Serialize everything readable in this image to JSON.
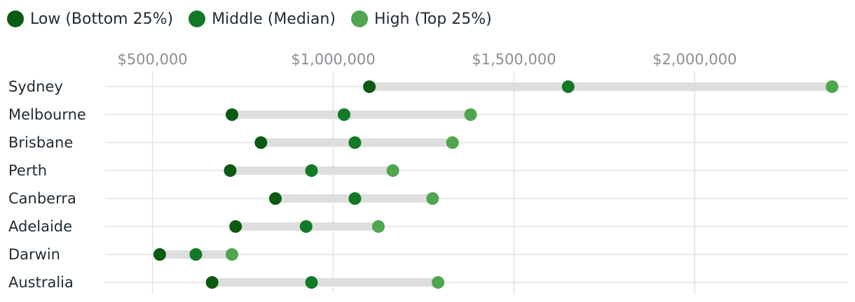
{
  "colors": {
    "low": "#0b5a12",
    "middle": "#127a27",
    "high": "#4ea64f",
    "range_bar": "#dedede",
    "grid": "#e2e2e2",
    "tick_text": "#8a8f94",
    "label_text": "#1f2a33"
  },
  "legend": {
    "items": [
      {
        "key": "low",
        "label": "Low (Bottom 25%)"
      },
      {
        "key": "middle",
        "label": "Middle (Median)"
      },
      {
        "key": "high",
        "label": "High (Top 25%)"
      }
    ]
  },
  "chart_data": {
    "type": "dumbbell",
    "title": "",
    "xlabel": "",
    "ylabel": "",
    "grid": true,
    "legend_position": "top-left",
    "x_axis_position": "top",
    "xlim": [
      370000,
      2400000
    ],
    "xticks": [
      500000,
      1000000,
      1500000,
      2000000
    ],
    "xtick_labels": [
      "$500,000",
      "$1,000,000",
      "$1,500,000",
      "$2,000,000"
    ],
    "categories": [
      "Sydney",
      "Melbourne",
      "Brisbane",
      "Perth",
      "Canberra",
      "Adelaide",
      "Darwin",
      "Australia"
    ],
    "series": [
      {
        "name": "Low (Bottom 25%)",
        "key": "low",
        "values": [
          1100000,
          720000,
          800000,
          715000,
          840000,
          730000,
          520000,
          665000
        ]
      },
      {
        "name": "Middle (Median)",
        "key": "middle",
        "values": [
          1650000,
          1030000,
          1060000,
          940000,
          1060000,
          925000,
          620000,
          940000
        ]
      },
      {
        "name": "High (Top 25%)",
        "key": "high",
        "values": [
          2380000,
          1380000,
          1330000,
          1165000,
          1275000,
          1125000,
          720000,
          1290000
        ]
      }
    ]
  }
}
